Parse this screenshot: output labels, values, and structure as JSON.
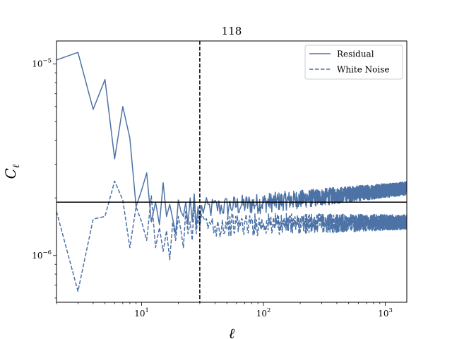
{
  "chart_data": {
    "type": "line",
    "title": "118",
    "xlabel": "ℓ",
    "ylabel": "C_ℓ",
    "ylabel_main": "C",
    "ylabel_sub": "ℓ",
    "xscale": "log",
    "yscale": "log",
    "xlim": [
      2,
      1500
    ],
    "ylim": [
      5.7e-07,
      1.32e-05
    ],
    "x_ticks": [
      {
        "value": 10,
        "base": "10",
        "exp": "1"
      },
      {
        "value": 100,
        "base": "10",
        "exp": "2"
      },
      {
        "value": 1000,
        "base": "10",
        "exp": "3"
      }
    ],
    "y_ticks": [
      {
        "value": 1e-06,
        "base": "10",
        "exp": "−6"
      },
      {
        "value": 1e-05,
        "base": "10",
        "exp": "−5"
      }
    ],
    "hline": {
      "y": 1.9e-06,
      "color": "#000000",
      "style": "solid"
    },
    "vline": {
      "x": 30,
      "color": "#000000",
      "style": "dashed"
    },
    "legend_position": "upper right",
    "series": [
      {
        "name": "Residual",
        "style": "solid",
        "color": "#4c72a6",
        "x": [
          2,
          3,
          4,
          5,
          6,
          7,
          8,
          9,
          10,
          11,
          12,
          13,
          14,
          15,
          16,
          17,
          18,
          19,
          20,
          21,
          22,
          23,
          24,
          25,
          26,
          27,
          28,
          29,
          30
        ],
        "y": [
          1.05e-05,
          1.15e-05,
          5.8e-06,
          8.3e-06,
          3.2e-06,
          6e-06,
          4.1e-06,
          1.8e-06,
          2.2e-06,
          2.7e-06,
          1.5e-06,
          1.9e-06,
          1.45e-06,
          2.4e-06,
          1.6e-06,
          1.85e-06,
          1.55e-06,
          1.3e-06,
          1.95e-06,
          1.7e-06,
          1.6e-06,
          1.9e-06,
          1.45e-06,
          2e-06,
          1.5e-06,
          2.1e-06,
          1.4e-06,
          1.8e-06,
          1.5e-06
        ],
        "tail": {
          "from": 30,
          "to": 1500,
          "start_level": 1.75e-06,
          "end_level": 2.25e-06,
          "scatter": 0.1
        }
      },
      {
        "name": "White Noise",
        "style": "dashed",
        "color": "#4c72a6",
        "x": [
          2,
          3,
          4,
          5,
          6,
          7,
          8,
          9,
          10,
          11,
          12,
          13,
          14,
          15,
          16,
          17,
          18,
          19,
          20,
          21,
          22,
          23,
          24,
          25,
          26,
          27,
          28,
          29,
          30
        ],
        "y": [
          1.7e-06,
          6.5e-07,
          1.55e-06,
          1.6e-06,
          2.45e-06,
          1.95e-06,
          1.1e-06,
          1.8e-06,
          1.5e-06,
          1.2e-06,
          2.05e-06,
          1.1e-06,
          1.4e-06,
          1.05e-06,
          1.35e-06,
          9.5e-07,
          1.5e-06,
          1.2e-06,
          1.6e-06,
          1.35e-06,
          1.1e-06,
          1.7e-06,
          1.3e-06,
          1.5e-06,
          1.2e-06,
          1.9e-06,
          1.3e-06,
          1.6e-06,
          1.4e-06
        ],
        "tail": {
          "from": 30,
          "to": 1500,
          "start_level": 1.45e-06,
          "end_level": 1.5e-06,
          "scatter": 0.11
        }
      }
    ]
  }
}
